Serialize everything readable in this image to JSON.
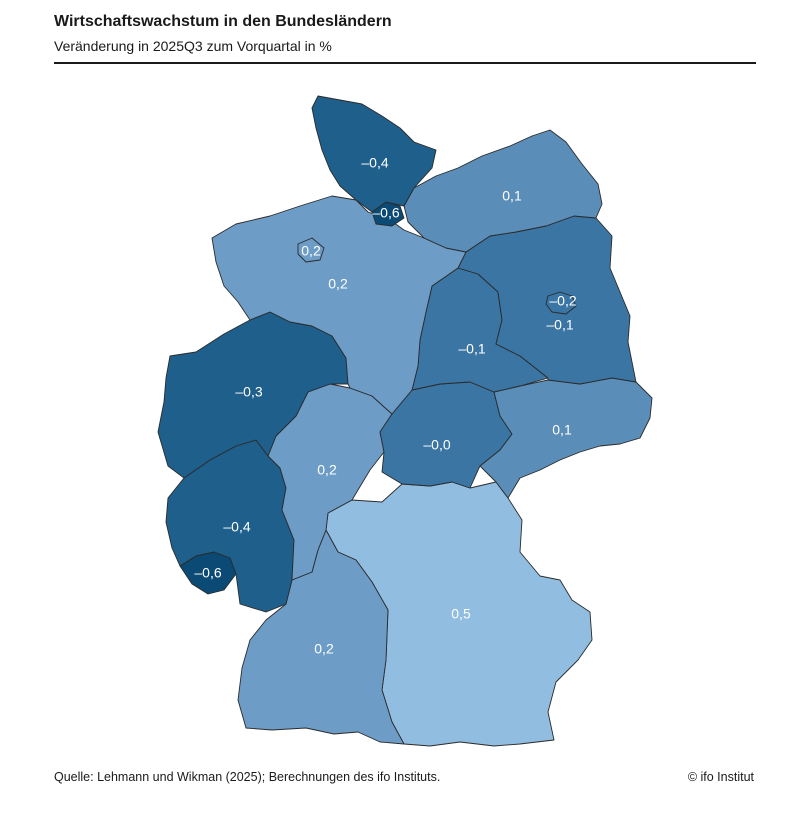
{
  "title": "Wirtschaftswachstum in den Bundesländern",
  "subtitle": "Veränderung in 2025Q3 zum Vorquartal in %",
  "source": "Quelle: Lehmann und Wikman (2025); Berechnungen des ifo Instituts.",
  "copyright": "© ifo Institut",
  "colors": {
    "bin_min": "#0a4a74",
    "bin_low": "#1f5f8b",
    "bin_mid_low": "#3a75a3",
    "bin_mid": "#5a8db8",
    "bin_high": "#6d9cc6",
    "bin_max": "#90bde0",
    "border": "#2b2b2b",
    "label": "#ffffff"
  },
  "regions": {
    "sh": {
      "value": "–0,4"
    },
    "hh": {
      "value": "–0,6"
    },
    "mv": {
      "value": "0,1"
    },
    "hb": {
      "value": "0,2"
    },
    "ni": {
      "value": "0,2"
    },
    "bb": {
      "value": "–0,1"
    },
    "be": {
      "value": "–0,2"
    },
    "st": {
      "value": "–0,1"
    },
    "nw": {
      "value": "–0,3"
    },
    "he": {
      "value": "0,2"
    },
    "th": {
      "value": "–0,0"
    },
    "sn": {
      "value": "0,1"
    },
    "rp": {
      "value": "–0,4"
    },
    "sl": {
      "value": "–0,6"
    },
    "bw": {
      "value": "0,2"
    },
    "by": {
      "value": "0,5"
    }
  }
}
